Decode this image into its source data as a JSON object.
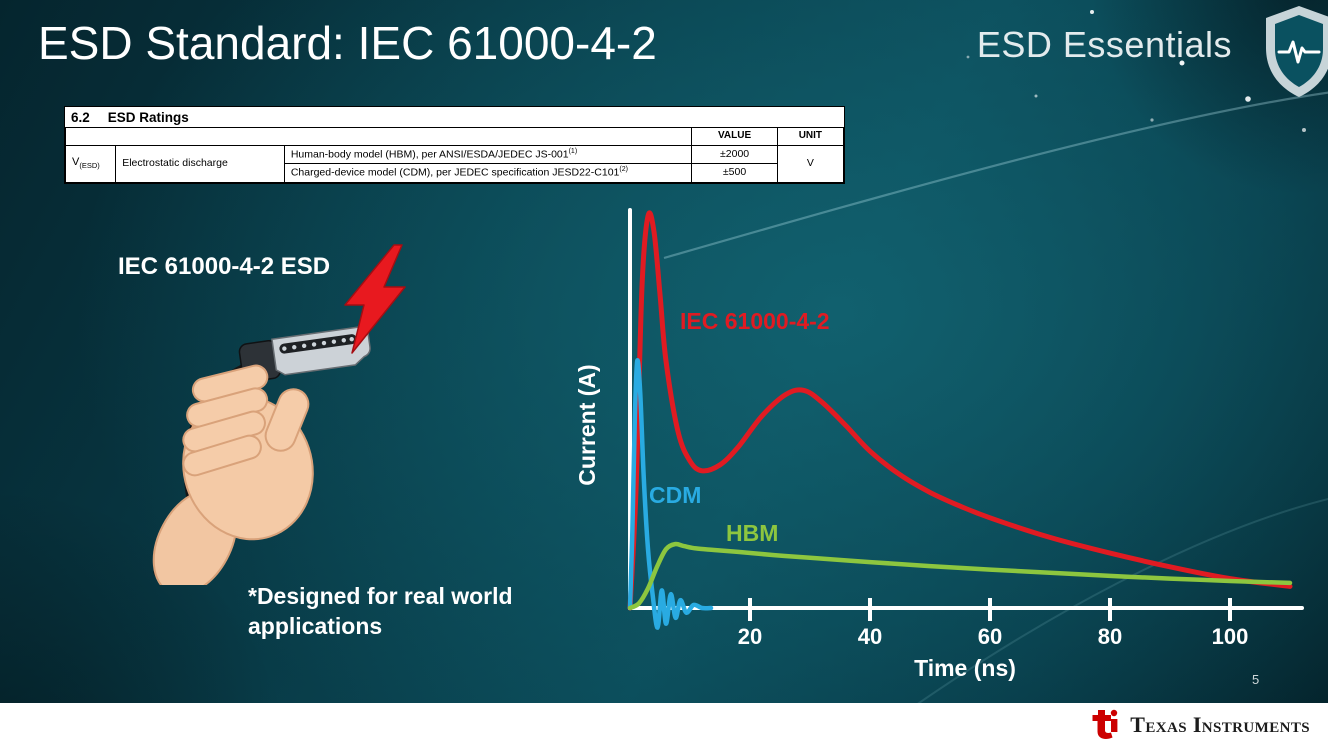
{
  "slide": {
    "title": "ESD Standard: IEC 61000-4-2",
    "brand": "ESD Essentials",
    "page_number": "5"
  },
  "ratings_table": {
    "section_number": "6.2",
    "section_title": "ESD Ratings",
    "headers": {
      "value": "VALUE",
      "unit": "UNIT"
    },
    "parameter": {
      "symbol": "V",
      "symbol_sub": "(ESD)",
      "name": "Electrostatic discharge"
    },
    "rows": [
      {
        "description": "Human-body model (HBM), per ANSI/ESDA/JEDEC JS-001",
        "sup": "(1)",
        "value": "±2000"
      },
      {
        "description": "Charged-device model (CDM), per JEDEC specification JESD22-C101",
        "sup": "(2)",
        "value": "±500"
      }
    ],
    "unit": "V"
  },
  "illustration": {
    "label": "IEC 61000-4-2 ESD",
    "note_line1": "*Designed for real world",
    "note_line2": "applications"
  },
  "chart_data": {
    "type": "line",
    "title": "",
    "xlabel": "Time (ns)",
    "ylabel": "Current (A)",
    "xlim": [
      0,
      112
    ],
    "ylim": [
      -0.06,
      1.05
    ],
    "x_ticks": [
      20,
      40,
      60,
      80,
      100
    ],
    "grid": false,
    "legend_position": "inline-labels",
    "y_axis_tick_labels": "none",
    "series": [
      {
        "name": "IEC 61000-4-2",
        "color": "#e01b22",
        "x": [
          0,
          1,
          2,
          3,
          4,
          5,
          6,
          8,
          10,
          12,
          15,
          18,
          22,
          26,
          29,
          32,
          36,
          40,
          45,
          50,
          55,
          60,
          70,
          80,
          90,
          100,
          110
        ],
        "y": [
          0,
          0.3,
          0.82,
          1.0,
          0.96,
          0.8,
          0.63,
          0.45,
          0.375,
          0.35,
          0.365,
          0.41,
          0.49,
          0.545,
          0.555,
          0.525,
          0.465,
          0.4,
          0.34,
          0.295,
          0.26,
          0.23,
          0.18,
          0.14,
          0.105,
          0.075,
          0.055
        ]
      },
      {
        "name": "CDM",
        "color": "#29abe2",
        "x": [
          0,
          0.4,
          0.8,
          1.2,
          1.7,
          2.3,
          3,
          3.8,
          4.6,
          5.3,
          6,
          6.8,
          7.6,
          8.4,
          9.4,
          10.6,
          12,
          13.5
        ],
        "y": [
          0,
          0.2,
          0.48,
          0.63,
          0.55,
          0.33,
          0.15,
          0.03,
          -0.05,
          0.045,
          -0.04,
          0.035,
          -0.025,
          0.02,
          -0.012,
          0.008,
          0,
          0
        ]
      },
      {
        "name": "HBM",
        "color": "#8dc63f",
        "x": [
          0,
          1.5,
          3,
          4.5,
          6,
          7.5,
          9,
          11,
          14,
          18,
          24,
          30,
          40,
          50,
          60,
          70,
          80,
          90,
          100,
          110
        ],
        "y": [
          0,
          0.012,
          0.05,
          0.105,
          0.15,
          0.163,
          0.158,
          0.152,
          0.148,
          0.143,
          0.135,
          0.128,
          0.117,
          0.107,
          0.098,
          0.09,
          0.082,
          0.075,
          0.069,
          0.064
        ]
      }
    ]
  },
  "footer": {
    "brand": "Texas Instruments"
  }
}
